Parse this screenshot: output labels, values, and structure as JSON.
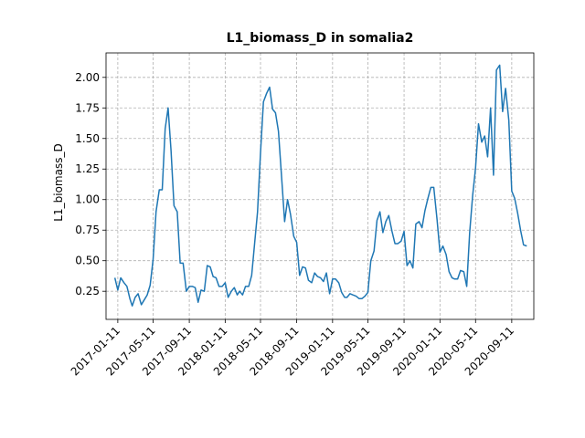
{
  "chart_data": {
    "type": "line",
    "title": "L1_biomass_D in somalia2",
    "xlabel": "",
    "ylabel": "L1_biomass_D",
    "xlim": [
      "2016-12-02",
      "2020-11-25"
    ],
    "ylim": [
      0.02,
      2.2
    ],
    "x_ticks": [
      "2017-01-11",
      "2017-05-11",
      "2017-09-11",
      "2018-01-11",
      "2018-05-11",
      "2018-09-11",
      "2019-01-11",
      "2019-05-11",
      "2019-09-11",
      "2020-01-11",
      "2020-05-11",
      "2020-09-11"
    ],
    "y_ticks": [
      "0.25",
      "0.50",
      "0.75",
      "1.00",
      "1.25",
      "1.50",
      "1.75",
      "2.00"
    ],
    "grid": true,
    "series": [
      {
        "color": "#1f77b4",
        "x": [
          "2017-01-01",
          "2017-01-11",
          "2017-01-21",
          "2017-02-01",
          "2017-02-11",
          "2017-02-21",
          "2017-03-01",
          "2017-03-11",
          "2017-03-21",
          "2017-04-01",
          "2017-04-11",
          "2017-04-21",
          "2017-05-01",
          "2017-05-11",
          "2017-05-21",
          "2017-06-01",
          "2017-06-11",
          "2017-06-21",
          "2017-07-01",
          "2017-07-11",
          "2017-07-21",
          "2017-08-01",
          "2017-08-11",
          "2017-08-21",
          "2017-09-01",
          "2017-09-11",
          "2017-09-21",
          "2017-10-01",
          "2017-10-11",
          "2017-10-21",
          "2017-11-01",
          "2017-11-11",
          "2017-11-21",
          "2017-12-01",
          "2017-12-11",
          "2017-12-21",
          "2018-01-01",
          "2018-01-11",
          "2018-01-21",
          "2018-02-01",
          "2018-02-11",
          "2018-02-21",
          "2018-03-01",
          "2018-03-11",
          "2018-03-21",
          "2018-04-01",
          "2018-04-11",
          "2018-04-21",
          "2018-05-01",
          "2018-05-11",
          "2018-05-21",
          "2018-06-01",
          "2018-06-11",
          "2018-06-21",
          "2018-07-01",
          "2018-07-11",
          "2018-07-21",
          "2018-08-01",
          "2018-08-11",
          "2018-08-21",
          "2018-09-01",
          "2018-09-11",
          "2018-09-21",
          "2018-10-01",
          "2018-10-11",
          "2018-10-21",
          "2018-11-01",
          "2018-11-11",
          "2018-11-21",
          "2018-12-01",
          "2018-12-11",
          "2018-12-21",
          "2019-01-01",
          "2019-01-11",
          "2019-01-21",
          "2019-02-01",
          "2019-02-11",
          "2019-02-21",
          "2019-03-01",
          "2019-03-11",
          "2019-03-21",
          "2019-04-01",
          "2019-04-11",
          "2019-04-21",
          "2019-05-01",
          "2019-05-11",
          "2019-05-21",
          "2019-06-01",
          "2019-06-11",
          "2019-06-21",
          "2019-07-01",
          "2019-07-11",
          "2019-07-21",
          "2019-08-01",
          "2019-08-11",
          "2019-08-21",
          "2019-09-01",
          "2019-09-11",
          "2019-09-21",
          "2019-10-01",
          "2019-10-11",
          "2019-10-21",
          "2019-11-01",
          "2019-11-11",
          "2019-11-21",
          "2019-12-01",
          "2019-12-11",
          "2019-12-21",
          "2020-01-01",
          "2020-01-11",
          "2020-01-21",
          "2020-02-01",
          "2020-02-11",
          "2020-02-21",
          "2020-03-01",
          "2020-03-11",
          "2020-03-21",
          "2020-04-01",
          "2020-04-11",
          "2020-04-21",
          "2020-05-01",
          "2020-05-11",
          "2020-05-21",
          "2020-06-01",
          "2020-06-11",
          "2020-06-21",
          "2020-07-01",
          "2020-07-11",
          "2020-07-21",
          "2020-08-01",
          "2020-08-11",
          "2020-08-21",
          "2020-09-01",
          "2020-09-11",
          "2020-09-21",
          "2020-10-01",
          "2020-10-11",
          "2020-10-21",
          "2020-11-01"
        ],
        "y": [
          0.36,
          0.26,
          0.36,
          0.32,
          0.29,
          0.19,
          0.13,
          0.2,
          0.23,
          0.14,
          0.18,
          0.22,
          0.3,
          0.51,
          0.9,
          1.08,
          1.08,
          1.58,
          1.75,
          1.4,
          0.95,
          0.9,
          0.48,
          0.48,
          0.25,
          0.29,
          0.29,
          0.28,
          0.16,
          0.26,
          0.25,
          0.46,
          0.45,
          0.37,
          0.36,
          0.29,
          0.29,
          0.32,
          0.2,
          0.25,
          0.28,
          0.22,
          0.25,
          0.22,
          0.29,
          0.29,
          0.38,
          0.64,
          0.9,
          1.38,
          1.8,
          1.87,
          1.92,
          1.74,
          1.71,
          1.56,
          1.21,
          0.82,
          1.0,
          0.88,
          0.7,
          0.65,
          0.38,
          0.45,
          0.44,
          0.34,
          0.32,
          0.4,
          0.37,
          0.36,
          0.33,
          0.4,
          0.23,
          0.35,
          0.35,
          0.32,
          0.24,
          0.2,
          0.2,
          0.23,
          0.22,
          0.21,
          0.19,
          0.19,
          0.21,
          0.24,
          0.5,
          0.58,
          0.83,
          0.9,
          0.73,
          0.82,
          0.87,
          0.74,
          0.64,
          0.64,
          0.66,
          0.74,
          0.46,
          0.5,
          0.44,
          0.8,
          0.82,
          0.77,
          0.91,
          1.01,
          1.1,
          1.1,
          0.84,
          0.57,
          0.62,
          0.55,
          0.41,
          0.36,
          0.35,
          0.35,
          0.42,
          0.41,
          0.29,
          0.73,
          1.03,
          1.26,
          1.62,
          1.47,
          1.52,
          1.35,
          1.75,
          1.2,
          2.06,
          2.1,
          1.72,
          1.91,
          1.65,
          1.07,
          1.01,
          0.89,
          0.75,
          0.63,
          0.62
        ]
      }
    ]
  }
}
